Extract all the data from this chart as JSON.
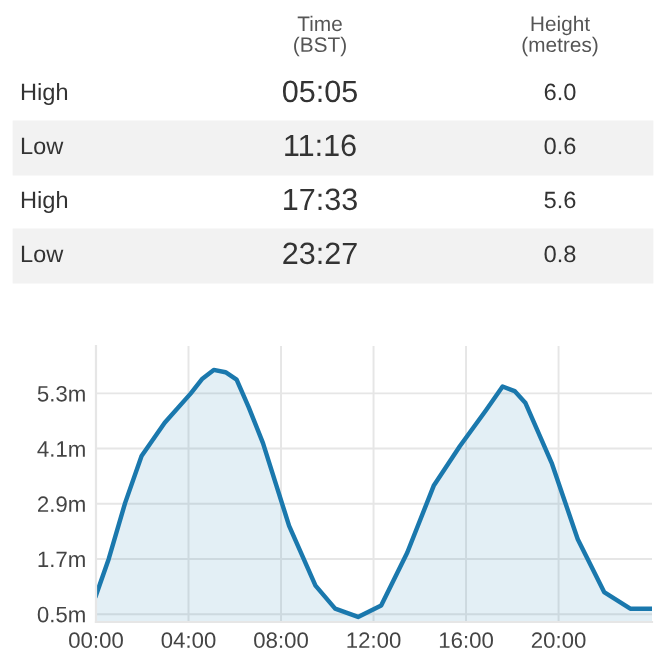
{
  "chart_data": {
    "type": "area",
    "annotations": [
      "Time\n(BST)",
      "Height\n(metres)",
      "High",
      "05:05",
      "6.0",
      "Low",
      "11:16",
      "0.6",
      "High",
      "17:33",
      "5.6",
      "Low",
      "23:27",
      "0.8"
    ],
    "x": [
      0,
      0.55,
      1.26,
      1.97,
      2.97,
      4.1,
      4.6,
      5.09,
      5.6,
      6.08,
      6.6,
      7.22,
      8.35,
      9.49,
      10.34,
      11.33,
      12.33,
      13.46,
      14.6,
      15.73,
      16.87,
      17.58,
      18.1,
      18.57,
      19.7,
      20.83,
      21.97,
      23.1,
      24.04
    ],
    "series": [
      {
        "color": "#1a78ad",
        "values": [
          0.91,
          1.7,
          2.92,
          3.94,
          4.66,
          5.3,
          5.62,
          5.81,
          5.76,
          5.6,
          5.0,
          4.22,
          2.42,
          1.12,
          0.62,
          0.44,
          0.69,
          1.84,
          3.29,
          4.15,
          4.94,
          5.45,
          5.35,
          5.09,
          3.79,
          2.13,
          0.98,
          0.62,
          0.62
        ]
      }
    ],
    "xlim": [
      0,
      24.04
    ],
    "ylim": [
      0.33,
      6.33
    ],
    "xticks": [
      {
        "value": 0,
        "label": "00:00"
      },
      {
        "value": 4,
        "label": "04:00"
      },
      {
        "value": 8,
        "label": "08:00"
      },
      {
        "value": 12,
        "label": "12:00"
      },
      {
        "value": 16,
        "label": "16:00"
      },
      {
        "value": 20,
        "label": "20:00"
      }
    ],
    "yticks": [
      {
        "value": 0.5,
        "label": "0.5m"
      },
      {
        "value": 1.7,
        "label": "1.7m"
      },
      {
        "value": 2.9,
        "label": "2.9m"
      },
      {
        "value": 4.1,
        "label": "4.1m"
      },
      {
        "value": 5.3,
        "label": "5.3m"
      }
    ],
    "grid": true
  }
}
